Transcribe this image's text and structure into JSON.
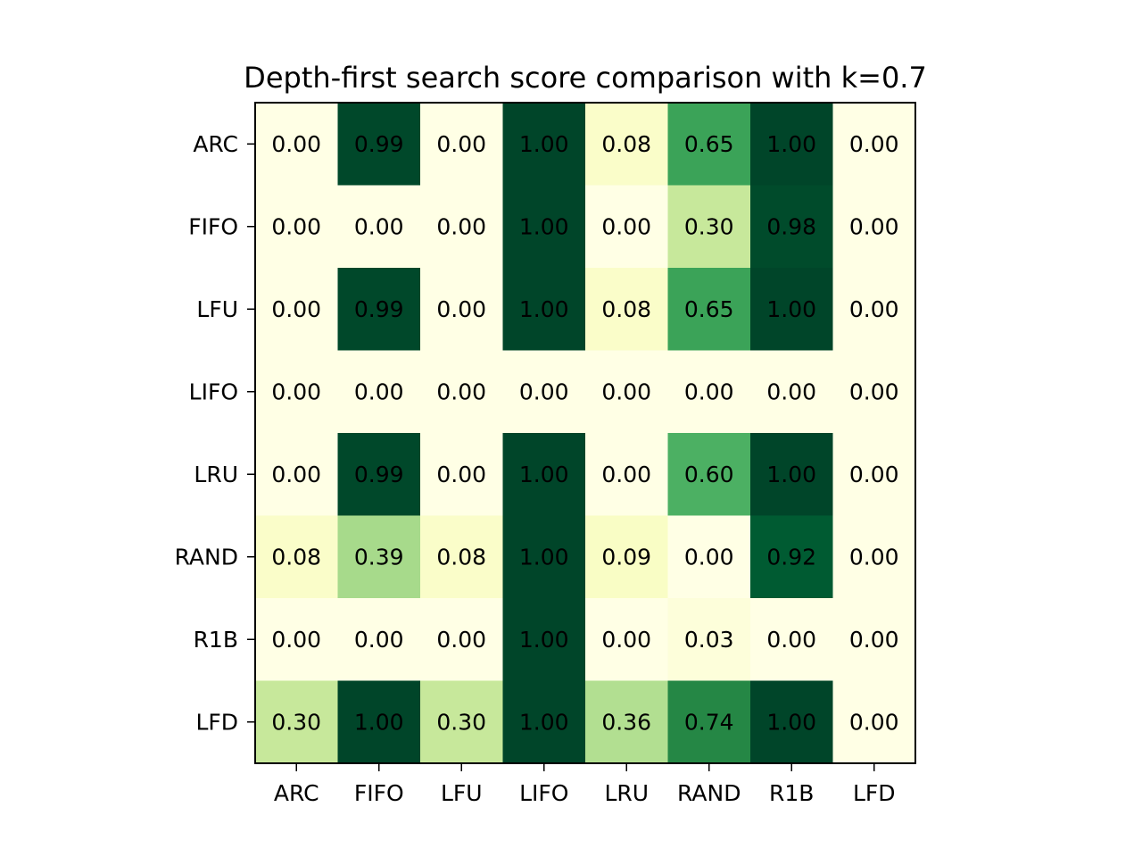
{
  "chart_data": {
    "type": "heatmap",
    "title": "Depth-first search score comparison with k=0.7",
    "xlabel": "",
    "ylabel": "",
    "x_categories": [
      "ARC",
      "FIFO",
      "LFU",
      "LIFO",
      "LRU",
      "RAND",
      "R1B",
      "LFD"
    ],
    "y_categories": [
      "ARC",
      "FIFO",
      "LFU",
      "LIFO",
      "LRU",
      "RAND",
      "R1B",
      "LFD"
    ],
    "values": [
      [
        0.0,
        0.99,
        0.0,
        1.0,
        0.08,
        0.65,
        1.0,
        0.0
      ],
      [
        0.0,
        0.0,
        0.0,
        1.0,
        0.0,
        0.3,
        0.98,
        0.0
      ],
      [
        0.0,
        0.99,
        0.0,
        1.0,
        0.08,
        0.65,
        1.0,
        0.0
      ],
      [
        0.0,
        0.0,
        0.0,
        0.0,
        0.0,
        0.0,
        0.0,
        0.0
      ],
      [
        0.0,
        0.99,
        0.0,
        1.0,
        0.0,
        0.6,
        1.0,
        0.0
      ],
      [
        0.08,
        0.39,
        0.08,
        1.0,
        0.09,
        0.0,
        0.92,
        0.0
      ],
      [
        0.0,
        0.0,
        0.0,
        1.0,
        0.0,
        0.03,
        0.0,
        0.0
      ],
      [
        0.3,
        1.0,
        0.3,
        1.0,
        0.36,
        0.74,
        1.0,
        0.0
      ]
    ],
    "value_format": "0.00",
    "vmin": 0,
    "vmax": 1,
    "colormap": "YlGn",
    "colormap_stops": [
      "#ffffe5",
      "#f7fcb9",
      "#d9f0a3",
      "#addd8e",
      "#78c679",
      "#41ab5d",
      "#238443",
      "#006837",
      "#004529"
    ],
    "grid": false,
    "legend": "none"
  }
}
